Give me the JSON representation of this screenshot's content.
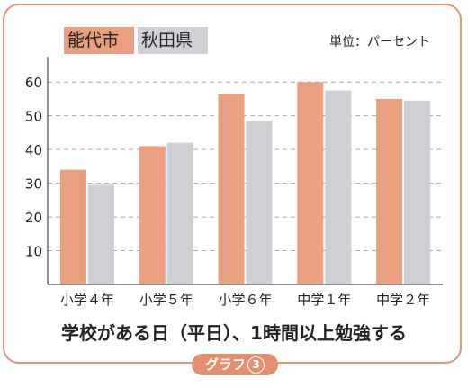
{
  "chart_data": {
    "type": "bar",
    "title": "学校がある日（平日）、1時間以上勉強する",
    "unit_label": "単位：パーセント",
    "categories": [
      "小学４年",
      "小学５年",
      "小学６年",
      "中学１年",
      "中学２年"
    ],
    "series": [
      {
        "name": "能代市",
        "color": "#e8a080",
        "values": [
          34,
          41,
          56.5,
          60,
          55
        ]
      },
      {
        "name": "秋田県",
        "color": "#d0d0d4",
        "values": [
          29.5,
          42,
          48.5,
          57.5,
          54.5
        ]
      }
    ],
    "yticks": [
      10,
      20,
      30,
      40,
      50,
      60
    ],
    "ylim": [
      0,
      67
    ],
    "grid": true,
    "legend": "top-left"
  },
  "badge": {
    "label": "グラフ",
    "number": "3"
  }
}
